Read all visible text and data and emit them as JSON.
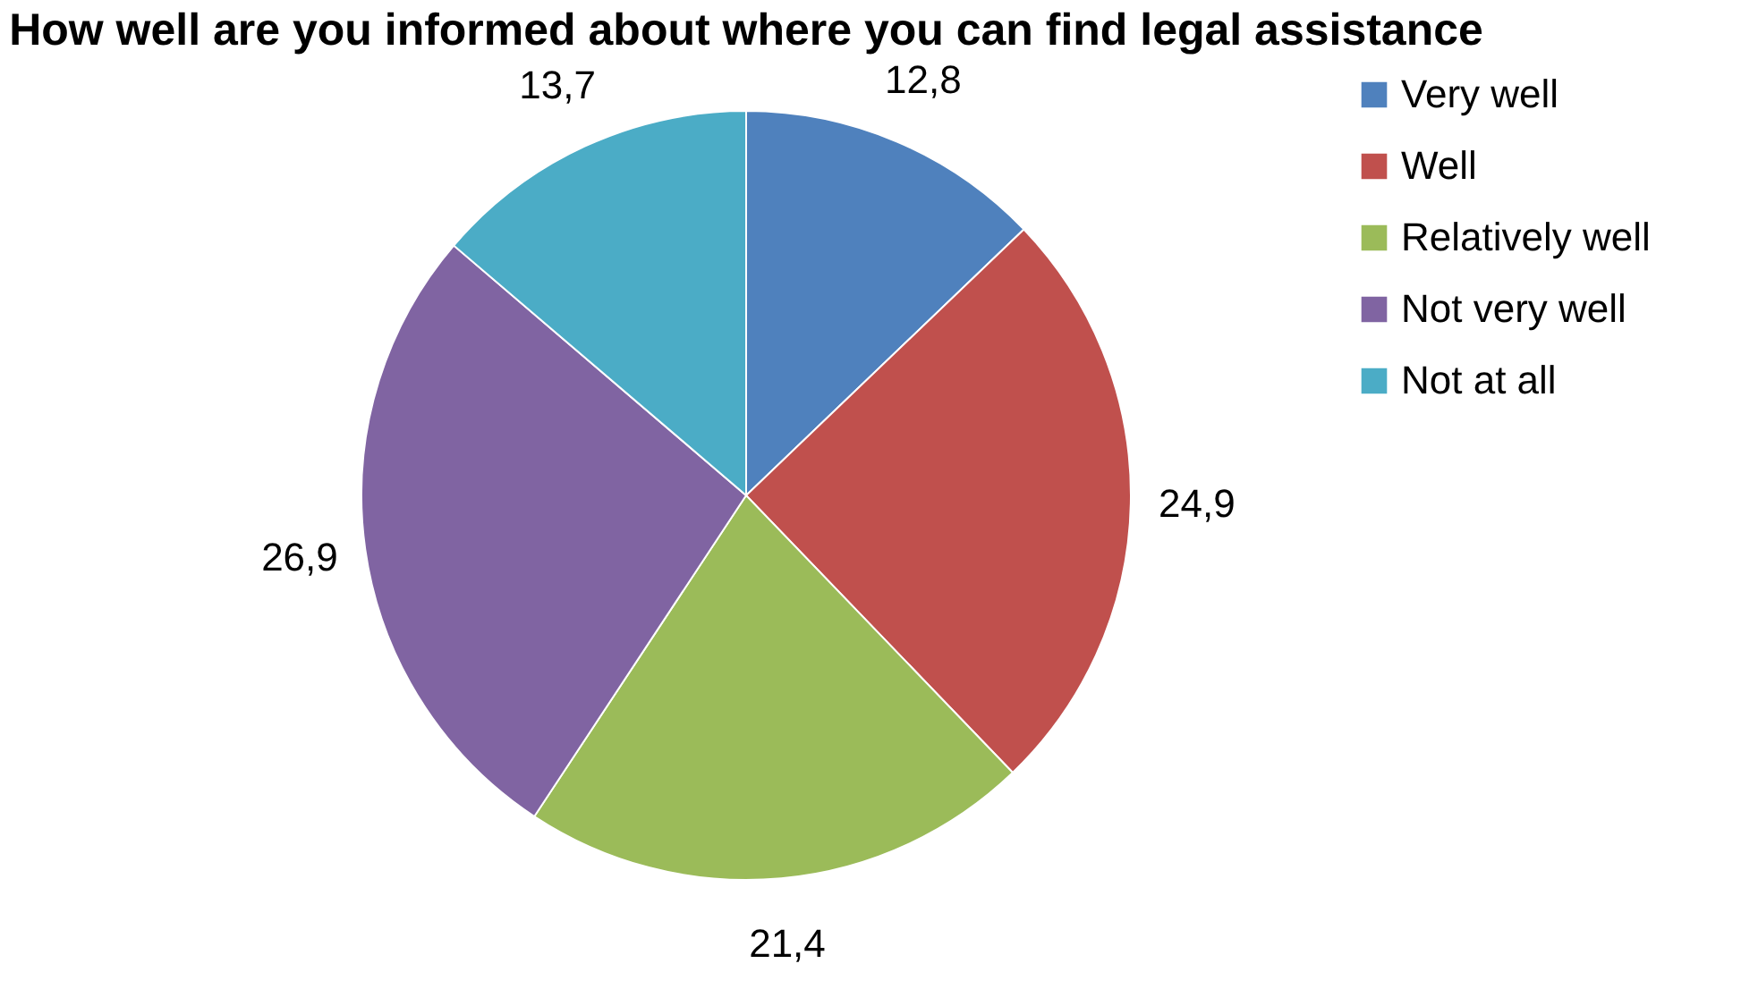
{
  "chart_data": {
    "type": "pie",
    "title": "How well are you informed about where you can find legal assistance",
    "categories": [
      "Very well",
      "Well",
      "Relatively well",
      "Not very well",
      "Not at all"
    ],
    "values": [
      12.8,
      24.9,
      21.4,
      26.9,
      13.7
    ],
    "colors": [
      "#4f81bd",
      "#c0504d",
      "#9bbb59",
      "#8064a2",
      "#4bacc6"
    ],
    "value_labels": [
      "12,8",
      "24,9",
      "21,4",
      "26,9",
      "13,7"
    ],
    "legend": "right"
  }
}
